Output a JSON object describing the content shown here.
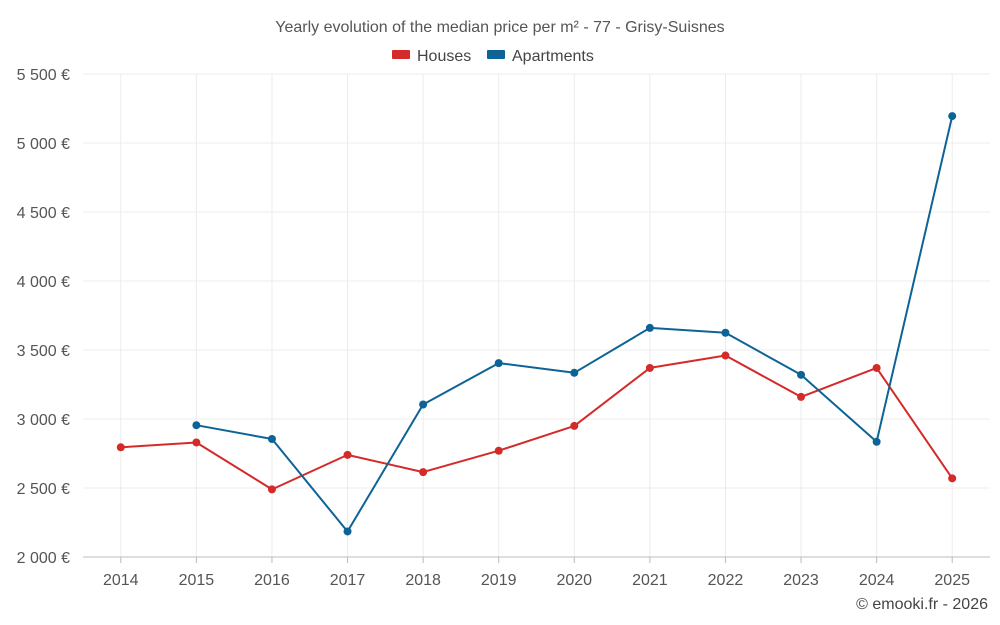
{
  "chart_data": {
    "type": "line",
    "title": "Yearly evolution of the median price per m² - 77 - Grisy-Suisnes",
    "categories": [
      "2014",
      "2015",
      "2016",
      "2017",
      "2018",
      "2019",
      "2020",
      "2021",
      "2022",
      "2023",
      "2024",
      "2025"
    ],
    "series": [
      {
        "name": "Houses",
        "color": "#d42a2a",
        "values": [
          2795,
          2830,
          2490,
          2740,
          2615,
          2770,
          2950,
          3370,
          3460,
          3160,
          3370,
          2570
        ]
      },
      {
        "name": "Apartments",
        "color": "#0e6396",
        "values": [
          null,
          2955,
          2855,
          2185,
          3105,
          3405,
          3335,
          3660,
          3625,
          3320,
          2835,
          5195
        ]
      }
    ],
    "ylim": [
      2000,
      5500
    ],
    "yticks": [
      2000,
      2500,
      3000,
      3500,
      4000,
      4500,
      5000,
      5500
    ],
    "ytick_labels": [
      "2 000 €",
      "2 500 €",
      "3 000 €",
      "3 500 €",
      "4 000 €",
      "4 500 €",
      "5 000 €",
      "5 500 €"
    ],
    "xlabel": "",
    "ylabel": "",
    "grid": true,
    "legend": "top-center"
  },
  "credit": "© emooki.fr - 2026"
}
